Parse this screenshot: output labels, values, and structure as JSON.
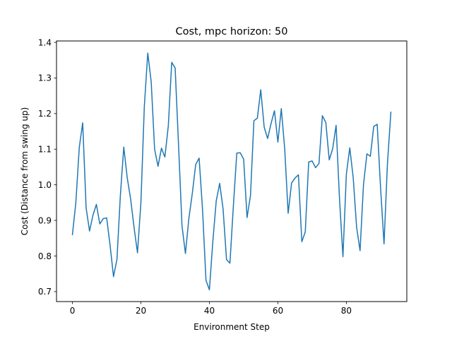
{
  "chart_data": {
    "type": "line",
    "title": "Cost, mpc horizon: 50",
    "xlabel": "Environment Step",
    "ylabel": "Cost (Distance from swing up)",
    "xlim": [
      -4.65,
      97.65
    ],
    "ylim": [
      0.672,
      1.404
    ],
    "xticks": [
      0,
      20,
      40,
      60,
      80
    ],
    "yticks": [
      0.7,
      0.8,
      0.9,
      1.0,
      1.1,
      1.2,
      1.3,
      1.4
    ],
    "ytick_labels": [
      "0.7",
      "0.8",
      "0.9",
      "1.0",
      "1.1",
      "1.2",
      "1.3",
      "1.4"
    ],
    "grid": false,
    "series": [
      {
        "color": "#1f77b4",
        "x": [
          0,
          1,
          2,
          3,
          4,
          5,
          6,
          7,
          8,
          9,
          10,
          11,
          12,
          13,
          14,
          15,
          16,
          17,
          18,
          19,
          20,
          21,
          22,
          23,
          24,
          25,
          26,
          27,
          28,
          29,
          30,
          31,
          32,
          33,
          34,
          35,
          36,
          37,
          38,
          39,
          40,
          41,
          42,
          43,
          44,
          45,
          46,
          47,
          48,
          49,
          50,
          51,
          52,
          53,
          54,
          55,
          56,
          57,
          58,
          59,
          60,
          61,
          62,
          63,
          64,
          65,
          66,
          67,
          68,
          69,
          70,
          71,
          72,
          73,
          74,
          75,
          76,
          77,
          78,
          79,
          80,
          81,
          82,
          83,
          84,
          85,
          86,
          87,
          88,
          89,
          90,
          91,
          92,
          93
        ],
        "y": [
          0.86,
          0.95,
          1.105,
          1.174,
          0.935,
          0.87,
          0.915,
          0.945,
          0.89,
          0.905,
          0.907,
          0.83,
          0.742,
          0.79,
          0.97,
          1.106,
          1.02,
          0.96,
          0.88,
          0.809,
          0.95,
          1.22,
          1.37,
          1.29,
          1.1,
          1.052,
          1.103,
          1.078,
          1.165,
          1.344,
          1.328,
          1.11,
          0.885,
          0.807,
          0.905,
          0.975,
          1.057,
          1.075,
          0.93,
          0.732,
          0.705,
          0.84,
          0.955,
          1.004,
          0.932,
          0.79,
          0.78,
          0.94,
          1.089,
          1.09,
          1.072,
          0.908,
          0.97,
          1.18,
          1.187,
          1.267,
          1.162,
          1.13,
          1.172,
          1.208,
          1.12,
          1.214,
          1.1,
          0.92,
          1.005,
          1.019,
          1.028,
          0.84,
          0.868,
          1.064,
          1.067,
          1.048,
          1.06,
          1.194,
          1.175,
          1.07,
          1.101,
          1.167,
          0.96,
          0.798,
          1.03,
          1.104,
          1.02,
          0.88,
          0.815,
          1.0,
          1.087,
          1.08,
          1.164,
          1.17,
          0.99,
          0.834,
          1.06,
          1.204
        ]
      }
    ]
  }
}
